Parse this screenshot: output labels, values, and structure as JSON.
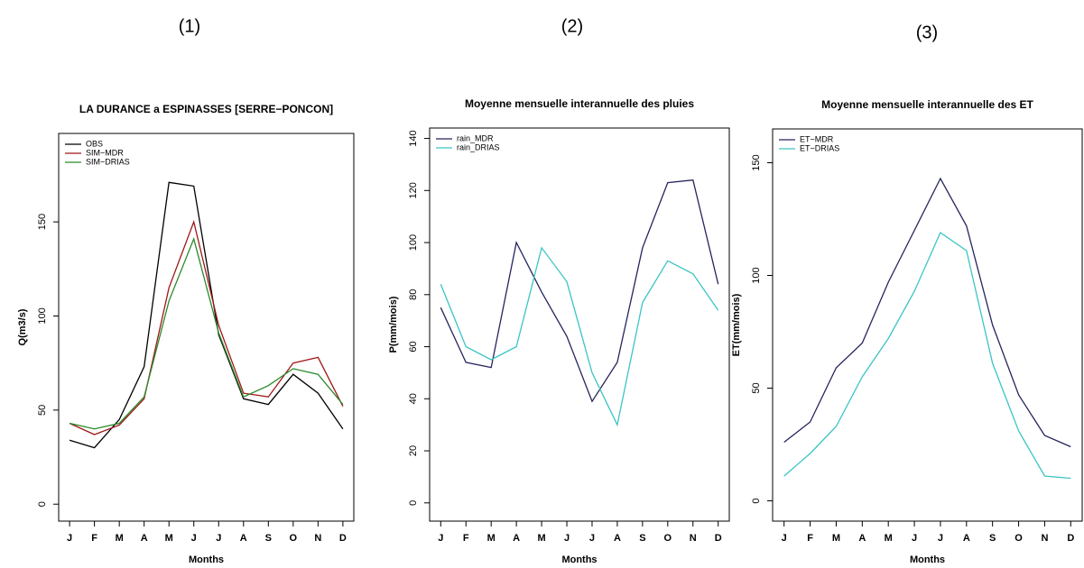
{
  "chart_data": [
    {
      "type": "line",
      "panel_label": "(1)",
      "title": "LA DURANCE a ESPINASSES [SERRE−PONCON]",
      "x_label": "Months",
      "y_label": "Q(m3/s)",
      "categories": [
        "J",
        "F",
        "M",
        "A",
        "M",
        "J",
        "J",
        "A",
        "S",
        "O",
        "N",
        "D"
      ],
      "series": [
        {
          "name": "OBS",
          "color": "#000000",
          "values": [
            34,
            30,
            45,
            73,
            171,
            169,
            90,
            56,
            53,
            69,
            59,
            40
          ]
        },
        {
          "name": "SIM−MDR",
          "color": "#a01818",
          "values": [
            43,
            37,
            42,
            56,
            115,
            150,
            95,
            59,
            57,
            75,
            78,
            52
          ]
        },
        {
          "name": "SIM−DRIAS",
          "color": "#2a8a2a",
          "values": [
            43,
            40,
            43,
            57,
            108,
            141,
            91,
            57,
            63,
            72,
            69,
            53
          ]
        }
      ],
      "ylim": [
        -9,
        197
      ],
      "yticks": [
        0,
        50,
        100,
        150
      ]
    },
    {
      "type": "line",
      "panel_label": "(2)",
      "title": "Moyenne mensuelle interannuelle des pluies",
      "x_label": "Months",
      "y_label": "P(mm/mois)",
      "categories": [
        "J",
        "F",
        "M",
        "A",
        "M",
        "J",
        "J",
        "A",
        "S",
        "O",
        "N",
        "D"
      ],
      "series": [
        {
          "name": "rain_MDR",
          "color": "#25255e",
          "values": [
            75,
            54,
            52,
            100,
            81,
            64,
            39,
            54,
            98,
            123,
            124,
            84
          ]
        },
        {
          "name": "rain_DRIAS",
          "color": "#3cc4c4",
          "values": [
            84,
            60,
            55,
            60,
            98,
            85,
            50,
            30,
            77,
            93,
            88,
            74
          ]
        }
      ],
      "ylim": [
        -7,
        144
      ],
      "yticks": [
        0,
        20,
        40,
        60,
        80,
        100,
        120,
        140
      ]
    },
    {
      "type": "line",
      "panel_label": "(3)",
      "title": "Moyenne mensuelle interannuelle des ET",
      "x_label": "Months",
      "y_label": "ET(mm/mois)",
      "categories": [
        "J",
        "F",
        "M",
        "A",
        "M",
        "J",
        "J",
        "A",
        "S",
        "O",
        "N",
        "D"
      ],
      "series": [
        {
          "name": "ET−MDR",
          "color": "#25255e",
          "values": [
            26,
            35,
            59,
            70,
            97,
            120,
            143,
            122,
            78,
            47,
            29,
            24
          ]
        },
        {
          "name": "ET−DRIAS",
          "color": "#3cc4c4",
          "values": [
            11,
            21,
            33,
            55,
            72,
            93,
            119,
            111,
            61,
            31,
            11,
            10
          ]
        }
      ],
      "ylim": [
        -9,
        165
      ],
      "yticks": [
        0,
        50,
        100,
        150
      ]
    }
  ]
}
